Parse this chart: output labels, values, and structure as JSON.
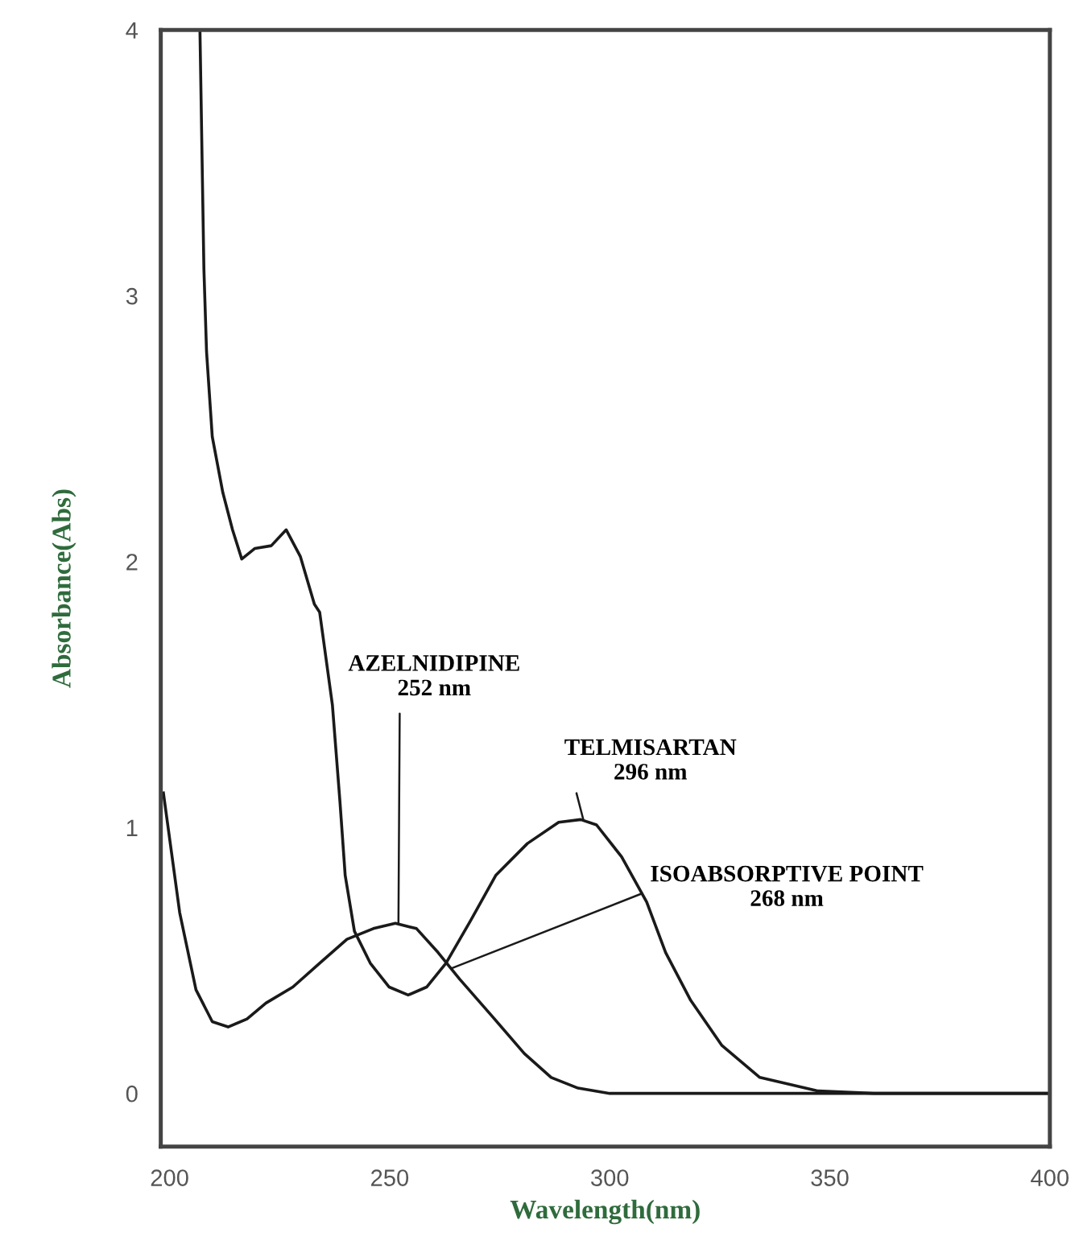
{
  "chart_data": {
    "type": "line",
    "xlabel": "Wavelength(nm)",
    "ylabel": "Absorbance(Abs)",
    "xlim": [
      198,
      400
    ],
    "ylim": [
      -0.2,
      4
    ],
    "xticks": [
      200,
      250,
      300,
      350,
      400
    ],
    "yticks": [
      0,
      1,
      2,
      3,
      4
    ],
    "grid": false,
    "marker": "none",
    "line_style": "solid",
    "series": [
      {
        "color": "#1a1a1a",
        "x": [
          206.9,
          207.8,
          208.4,
          209.7,
          212.1,
          214.3,
          216.4,
          219.4,
          223.1,
          226.5,
          229.7,
          232.9,
          234.1,
          237.0,
          238.7,
          239.9,
          242.0,
          245.6,
          249.9,
          254.2,
          258.4,
          262.8,
          268.4,
          274.1,
          281.3,
          288.4,
          293.4,
          297.0,
          302.7,
          308.4,
          312.7,
          318.4,
          325.5,
          334.1,
          347.0,
          360.0,
          400.0
        ],
        "values": [
          4.0,
          3.1,
          2.79,
          2.47,
          2.26,
          2.12,
          2.01,
          2.05,
          2.06,
          2.12,
          2.02,
          1.84,
          1.81,
          1.46,
          1.1,
          0.82,
          0.61,
          0.49,
          0.4,
          0.37,
          0.4,
          0.49,
          0.65,
          0.82,
          0.94,
          1.02,
          1.03,
          1.01,
          0.89,
          0.72,
          0.53,
          0.35,
          0.18,
          0.06,
          0.01,
          0.0,
          0.0
        ]
      },
      {
        "color": "#1a1a1a",
        "x": [
          198.6,
          202.3,
          206.0,
          209.7,
          213.3,
          217.6,
          221.9,
          228.0,
          234.1,
          240.3,
          246.3,
          251.3,
          256.1,
          261.0,
          265.9,
          273.3,
          280.6,
          286.7,
          292.8,
          300.0,
          400.0
        ],
        "values": [
          1.13,
          0.68,
          0.39,
          0.27,
          0.25,
          0.28,
          0.34,
          0.4,
          0.49,
          0.58,
          0.62,
          0.64,
          0.62,
          0.53,
          0.43,
          0.29,
          0.15,
          0.06,
          0.02,
          0.0,
          0.0
        ]
      }
    ],
    "annotations": [
      {
        "text": "AZELNIDIPINE\n252 nm",
        "x": 252,
        "y": 0.64
      },
      {
        "text": "TELMISARTAN\n296 nm",
        "x": 294,
        "y": 1.03
      },
      {
        "text": "ISOABSORPTIVE POINT\n268 nm",
        "x": 264,
        "y": 0.47
      }
    ]
  }
}
